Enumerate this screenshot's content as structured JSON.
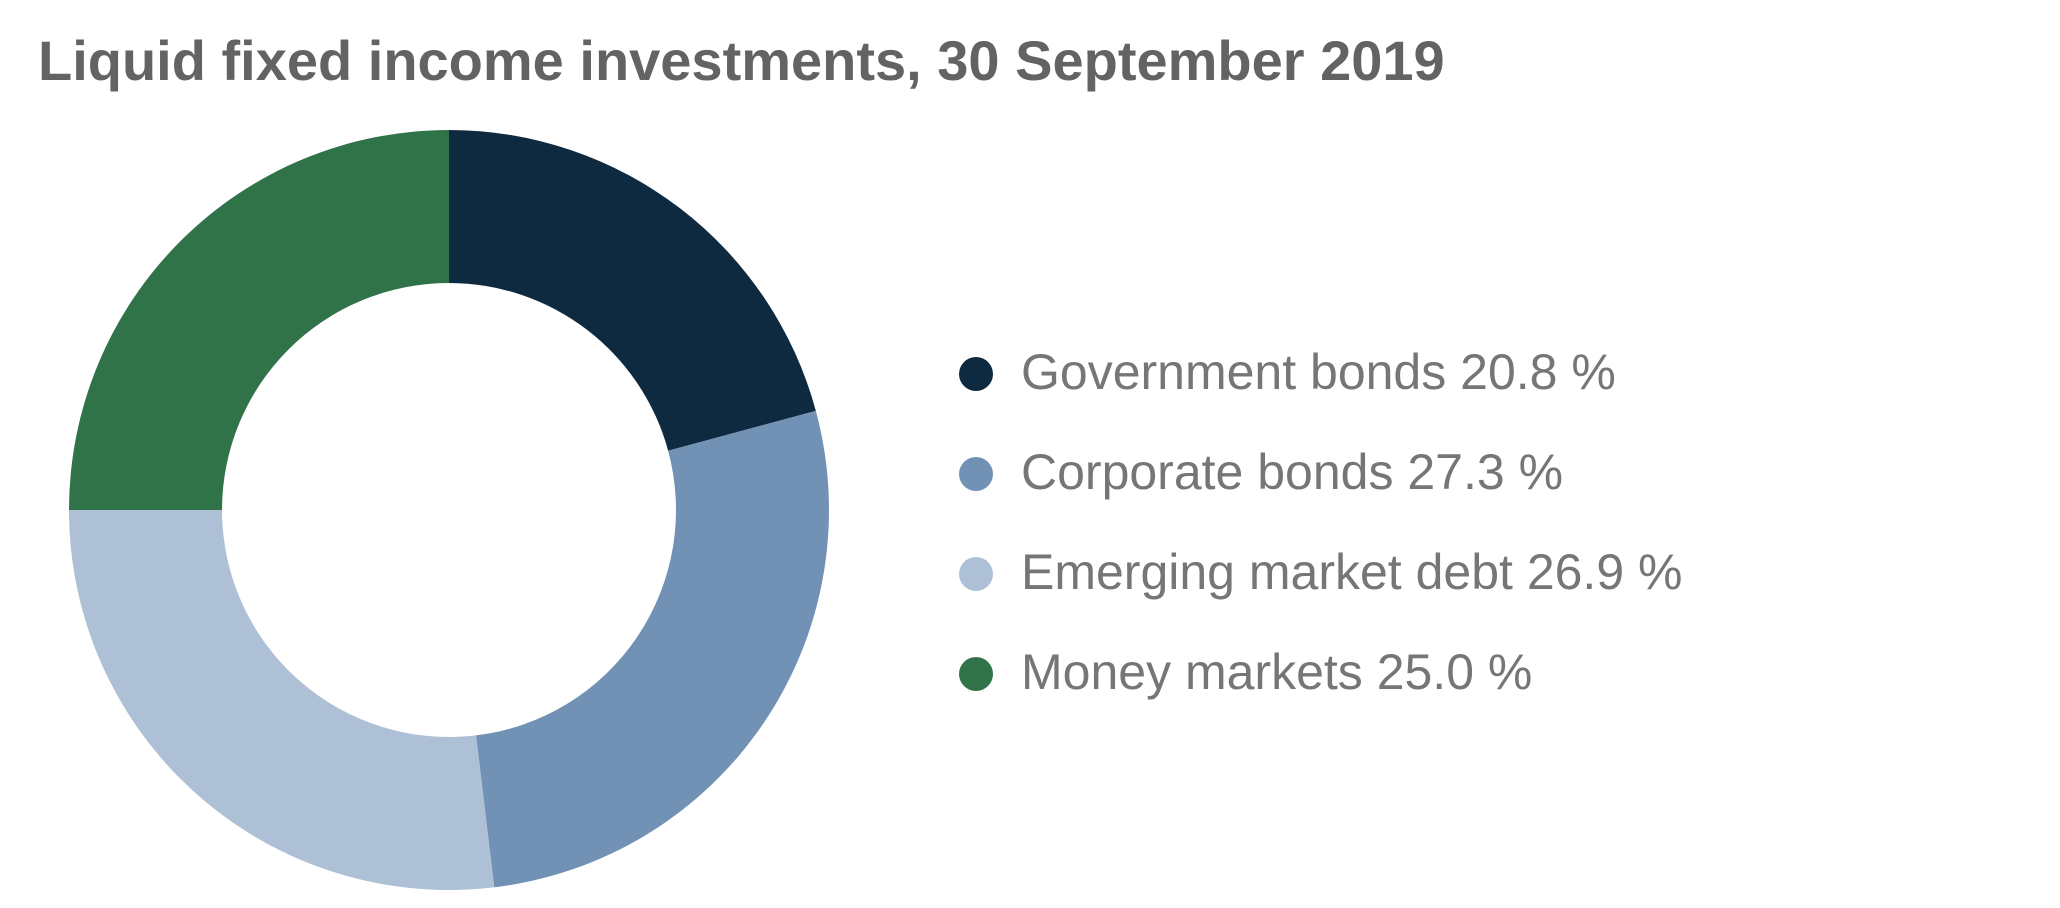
{
  "chart_data": {
    "type": "donut",
    "title": "Liquid fixed income investments, 30 September 2019",
    "categories": [
      "Government bonds",
      "Corporate bonds",
      "Emerging market debt",
      "Money markets"
    ],
    "values": [
      20.8,
      27.3,
      26.9,
      25.0
    ],
    "value_labels": [
      "20.8 %",
      "27.3 %",
      "26.9 %",
      "25.0 %"
    ],
    "colors": [
      "#0e2a40",
      "#7191b5",
      "#adc0d5",
      "#317349"
    ],
    "legend": "right"
  }
}
